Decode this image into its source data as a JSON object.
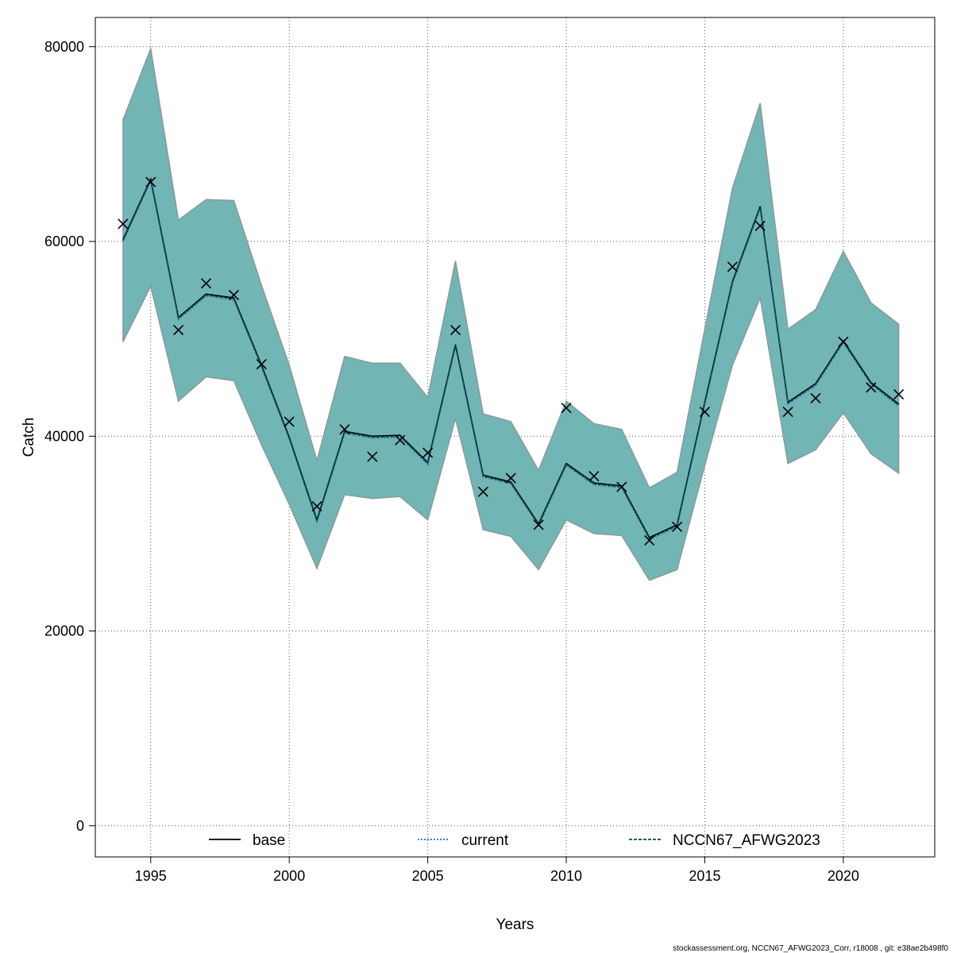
{
  "chart_data": {
    "type": "line",
    "xlabel": "Years",
    "ylabel": "Catch",
    "xlim": [
      1993,
      2023.3
    ],
    "ylim": [
      -3200,
      83000
    ],
    "xticks": [
      1995,
      2000,
      2005,
      2010,
      2015,
      2020
    ],
    "yticks": [
      0,
      20000,
      40000,
      60000,
      80000
    ],
    "ytick_labels": [
      "0",
      "20000",
      "40000",
      "60000",
      "80000"
    ],
    "xtick_labels": [
      "1995",
      "2000",
      "2005",
      "2010",
      "2015",
      "2020"
    ],
    "grid": true,
    "legend_position": "bottom",
    "x": [
      1994,
      1995,
      1996,
      1997,
      1998,
      1999,
      2000,
      2001,
      2002,
      2003,
      2004,
      2005,
      2006,
      2007,
      2008,
      2009,
      2010,
      2011,
      2012,
      2013,
      2014,
      2015,
      2016,
      2017,
      2018,
      2019,
      2020,
      2021,
      2022
    ],
    "band": {
      "upper": [
        72500,
        79800,
        62200,
        64300,
        64200,
        55500,
        47300,
        37500,
        48200,
        47500,
        47500,
        44000,
        58000,
        42300,
        41500,
        36500,
        43600,
        41300,
        40700,
        34700,
        36300,
        51000,
        65500,
        74200,
        51000,
        53000,
        59000,
        53700,
        51500
      ],
      "lower": [
        49700,
        55400,
        43600,
        46100,
        45700,
        39100,
        33000,
        26400,
        34000,
        33600,
        33800,
        31400,
        41800,
        30400,
        29700,
        26300,
        31400,
        30000,
        29800,
        25200,
        26300,
        37000,
        47300,
        54200,
        37200,
        38600,
        42400,
        38200,
        36200
      ],
      "color": "#72b5b5"
    },
    "series": [
      {
        "name": "base",
        "values": [
          60200,
          66400,
          52200,
          54600,
          54200,
          47300,
          39900,
          31400,
          40500,
          40000,
          40100,
          37300,
          49400,
          36000,
          35300,
          31000,
          37200,
          35200,
          34900,
          29600,
          30900,
          43500,
          55900,
          63600,
          43500,
          45400,
          49800,
          45500,
          43300
        ],
        "color": "#000000",
        "style": "solid"
      },
      {
        "name": "current",
        "values": [
          60000,
          66200,
          52000,
          54400,
          54000,
          47100,
          39700,
          31200,
          40300,
          39800,
          39900,
          37100,
          49200,
          35800,
          35100,
          30800,
          37000,
          35000,
          34700,
          29400,
          30700,
          43300,
          55700,
          63400,
          43300,
          45200,
          49600,
          45300,
          43100
        ],
        "color": "#1f78b4",
        "style": "dotted"
      },
      {
        "name": "NCCN67_AFWG2023",
        "values": [
          60100,
          66300,
          52100,
          54500,
          54100,
          47200,
          39800,
          31300,
          40400,
          39900,
          40000,
          37200,
          49300,
          35900,
          35200,
          30900,
          37100,
          35100,
          34800,
          29500,
          30800,
          43400,
          55800,
          63500,
          43400,
          45300,
          49700,
          45400,
          43200
        ],
        "color": "#0a4a4a",
        "style": "dashed"
      }
    ],
    "observations": {
      "marker": "x",
      "values": [
        61800,
        66100,
        50900,
        55700,
        54500,
        47400,
        41500,
        32800,
        40700,
        37900,
        39600,
        38300,
        50900,
        34300,
        35700,
        30900,
        42900,
        35900,
        34800,
        29300,
        30700,
        42500,
        57400,
        61600,
        42500,
        43900,
        49700,
        45000,
        44300
      ]
    }
  },
  "footer": {
    "text": "stockassessment.org, NCCN67_AFWG2023_Corr, r18008 , git: e38ae2b498f0"
  }
}
